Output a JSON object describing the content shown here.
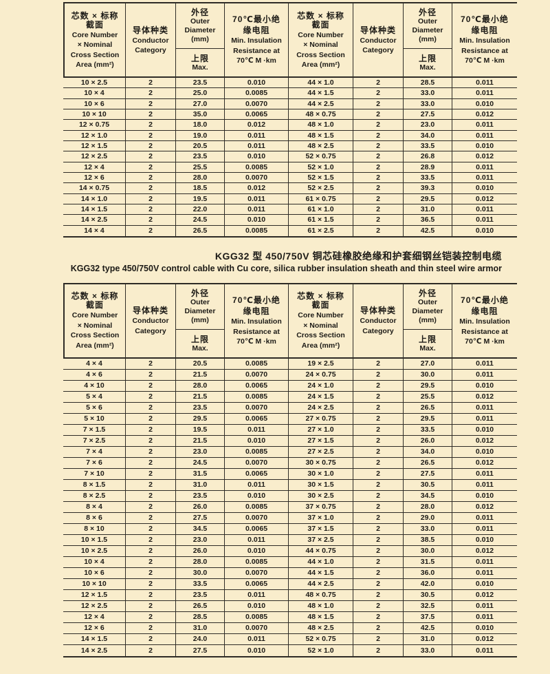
{
  "page": {
    "background": "#f9edcc",
    "line_color": "#2e2b26"
  },
  "header_labels": {
    "core_cn_1": "芯数 × 标称",
    "core_cn_2": "截面",
    "core_en_1": "Core Number",
    "core_en_2": "× Nominal",
    "core_en_3": "Cross Section",
    "core_en_4": "Area (mm²)",
    "conductor_cn": "导体种类",
    "conductor_en_1": "Conductor",
    "conductor_en_2": "Category",
    "od_cn": "外径",
    "od_en_1": "Outer",
    "od_en_2": "Diameter",
    "od_en_3": "(mm)",
    "od_max_cn": "上限",
    "od_max_en": "Max.",
    "ir_cn_1": "70℃最小绝",
    "ir_cn_2": "缘电阻",
    "ir_en_1": "Min. Insulation",
    "ir_en_2": "Resistance at",
    "ir_en_3": "70℃ M ·km"
  },
  "section_title": {
    "cn": "KGG32 型 450/750V 铜芯硅橡胶绝缘和护套细钢丝铠装控制电缆",
    "en": "KGG32 type 450/750V control cable with Cu core, silica rubber insulation sheath and thin steel wire armor"
  },
  "table1": {
    "left_rows": [
      [
        "10 × 2.5",
        "2",
        "23.5",
        "0.010"
      ],
      [
        "10 × 4",
        "2",
        "25.0",
        "0.0085"
      ],
      [
        "10 × 6",
        "2",
        "27.0",
        "0.0070"
      ],
      [
        "10 × 10",
        "2",
        "35.0",
        "0.0065"
      ],
      [
        "12 × 0.75",
        "2",
        "18.0",
        "0.012"
      ],
      [
        "12 × 1.0",
        "2",
        "19.0",
        "0.011"
      ],
      [
        "12 × 1.5",
        "2",
        "20.5",
        "0.011"
      ],
      [
        "12 × 2.5",
        "2",
        "23.5",
        "0.010"
      ],
      [
        "12 × 4",
        "2",
        "25.5",
        "0.0085"
      ],
      [
        "12 × 6",
        "2",
        "28.0",
        "0.0070"
      ],
      [
        "14 × 0.75",
        "2",
        "18.5",
        "0.012"
      ],
      [
        "14 × 1.0",
        "2",
        "19.5",
        "0.011"
      ],
      [
        "14 × 1.5",
        "2",
        "22.0",
        "0.011"
      ],
      [
        "14 × 2.5",
        "2",
        "24.5",
        "0.010"
      ],
      [
        "14 × 4",
        "2",
        "26.5",
        "0.0085"
      ]
    ],
    "right_rows": [
      [
        "44 × 1.0",
        "2",
        "28.5",
        "0.011"
      ],
      [
        "44 × 1.5",
        "2",
        "33.0",
        "0.011"
      ],
      [
        "44 × 2.5",
        "2",
        "33.0",
        "0.010"
      ],
      [
        "48 × 0.75",
        "2",
        "27.5",
        "0.012"
      ],
      [
        "48 × 1.0",
        "2",
        "23.0",
        "0.011"
      ],
      [
        "48 × 1.5",
        "2",
        "34.0",
        "0.011"
      ],
      [
        "48 × 2.5",
        "2",
        "33.5",
        "0.010"
      ],
      [
        "52 × 0.75",
        "2",
        "26.8",
        "0.012"
      ],
      [
        "52 × 1.0",
        "2",
        "28.9",
        "0.011"
      ],
      [
        "52 × 1.5",
        "2",
        "33.5",
        "0.011"
      ],
      [
        "52 × 2.5",
        "2",
        "39.3",
        "0.010"
      ],
      [
        "61 × 0.75",
        "2",
        "29.5",
        "0.012"
      ],
      [
        "61 × 1.0",
        "2",
        "31.0",
        "0.011"
      ],
      [
        "61 × 1.5",
        "2",
        "36.5",
        "0.011"
      ],
      [
        "61 × 2.5",
        "2",
        "42.5",
        "0.010"
      ]
    ]
  },
  "table2": {
    "left_rows": [
      [
        "4 × 4",
        "2",
        "20.5",
        "0.0085"
      ],
      [
        "4 × 6",
        "2",
        "21.5",
        "0.0070"
      ],
      [
        "4 × 10",
        "2",
        "28.0",
        "0.0065"
      ],
      [
        "5 × 4",
        "2",
        "21.5",
        "0.0085"
      ],
      [
        "5 × 6",
        "2",
        "23.5",
        "0.0070"
      ],
      [
        "5 × 10",
        "2",
        "29.5",
        "0.0065"
      ],
      [
        "7 × 1.5",
        "2",
        "19.5",
        "0.011"
      ],
      [
        "7 × 2.5",
        "2",
        "21.5",
        "0.010"
      ],
      [
        "7 × 4",
        "2",
        "23.0",
        "0.0085"
      ],
      [
        "7 × 6",
        "2",
        "24.5",
        "0.0070"
      ],
      [
        "7 × 10",
        "2",
        "31.5",
        "0.0065"
      ],
      [
        "8 × 1.5",
        "2",
        "31.0",
        "0.011"
      ],
      [
        "8 × 2.5",
        "2",
        "23.5",
        "0.010"
      ],
      [
        "8 × 4",
        "2",
        "26.0",
        "0.0085"
      ],
      [
        "8 × 6",
        "2",
        "27.5",
        "0.0070"
      ],
      [
        "8 × 10",
        "2",
        "34.5",
        "0.0065"
      ],
      [
        "10 × 1.5",
        "2",
        "23.0",
        "0.011"
      ],
      [
        "10 × 2.5",
        "2",
        "26.0",
        "0.010"
      ],
      [
        "10 × 4",
        "2",
        "28.0",
        "0.0085"
      ],
      [
        "10 × 6",
        "2",
        "30.0",
        "0.0070"
      ],
      [
        "10 × 10",
        "2",
        "33.5",
        "0.0065"
      ],
      [
        "12 × 1.5",
        "2",
        "23.5",
        "0.011"
      ],
      [
        "12 × 2.5",
        "2",
        "26.5",
        "0.010"
      ],
      [
        "12 × 4",
        "2",
        "28.5",
        "0.0085"
      ],
      [
        "12 × 6",
        "2",
        "31.0",
        "0.0070"
      ],
      [
        "14 × 1.5",
        "2",
        "24.0",
        "0.011"
      ],
      [
        "14 × 2.5",
        "2",
        "27.5",
        "0.010"
      ]
    ],
    "right_rows": [
      [
        "19 × 2.5",
        "2",
        "27.0",
        "0.011"
      ],
      [
        "24 × 0.75",
        "2",
        "30.0",
        "0.011"
      ],
      [
        "24 × 1.0",
        "2",
        "29.5",
        "0.010"
      ],
      [
        "24 × 1.5",
        "2",
        "25.5",
        "0.012"
      ],
      [
        "24 × 2.5",
        "2",
        "26.5",
        "0.011"
      ],
      [
        "27 × 0.75",
        "2",
        "29.5",
        "0.011"
      ],
      [
        "27 × 1.0",
        "2",
        "33.5",
        "0.010"
      ],
      [
        "27 × 1.5",
        "2",
        "26.0",
        "0.012"
      ],
      [
        "27 × 2.5",
        "2",
        "34.0",
        "0.010"
      ],
      [
        "30 × 0.75",
        "2",
        "26.5",
        "0.012"
      ],
      [
        "30 × 1.0",
        "2",
        "27.5",
        "0.011"
      ],
      [
        "30 × 1.5",
        "2",
        "30.5",
        "0.011"
      ],
      [
        "30 × 2.5",
        "2",
        "34.5",
        "0.010"
      ],
      [
        "37 × 0.75",
        "2",
        "28.0",
        "0.012"
      ],
      [
        "37 × 1.0",
        "2",
        "29.0",
        "0.011"
      ],
      [
        "37 × 1.5",
        "2",
        "33.0",
        "0.011"
      ],
      [
        "37 × 2.5",
        "2",
        "38.5",
        "0.010"
      ],
      [
        "44 × 0.75",
        "2",
        "30.0",
        "0.012"
      ],
      [
        "44 × 1.0",
        "2",
        "31.5",
        "0.011"
      ],
      [
        "44 × 1.5",
        "2",
        "36.0",
        "0.011"
      ],
      [
        "44 × 2.5",
        "2",
        "42.0",
        "0.010"
      ],
      [
        "48 × 0.75",
        "2",
        "30.5",
        "0.012"
      ],
      [
        "48 × 1.0",
        "2",
        "32.5",
        "0.011"
      ],
      [
        "48 × 1.5",
        "2",
        "37.5",
        "0.011"
      ],
      [
        "48 × 2.5",
        "2",
        "42.5",
        "0.010"
      ],
      [
        "52 × 0.75",
        "2",
        "31.0",
        "0.012"
      ],
      [
        "52 × 1.0",
        "2",
        "33.0",
        "0.011"
      ]
    ]
  }
}
